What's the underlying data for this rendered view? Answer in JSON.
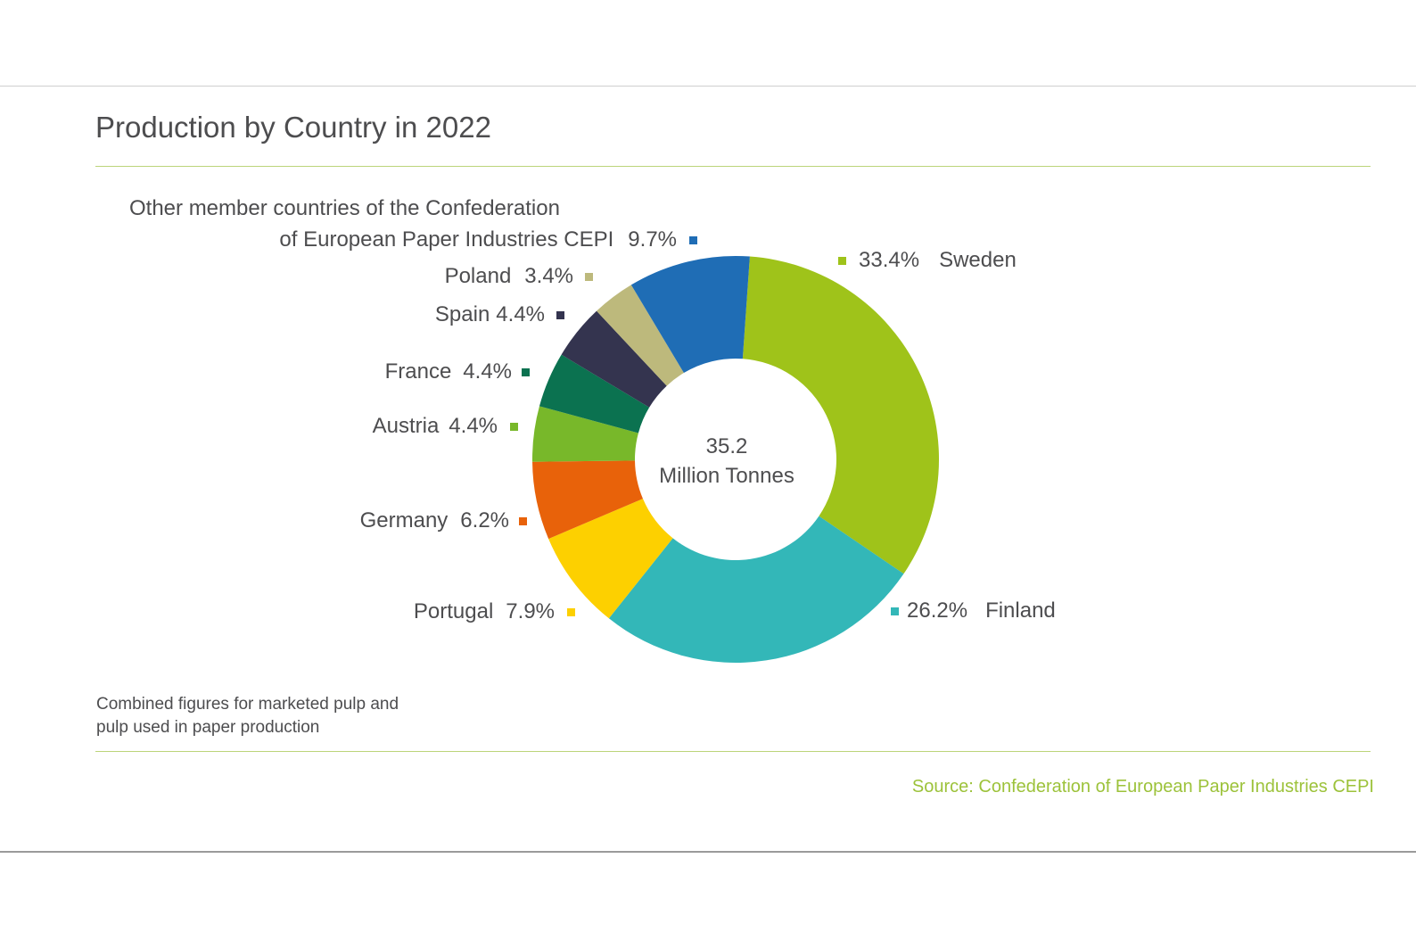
{
  "chart_data": {
    "type": "pie",
    "subtype": "donut",
    "title": "Production by Country in 2022",
    "total_value": "35.2",
    "total_unit": "Million Tonnes",
    "unit": "%",
    "slices": [
      {
        "name": "Sweden",
        "value": 33.4,
        "label": "33.4%",
        "color": "#9fc31a"
      },
      {
        "name": "Finland",
        "value": 26.2,
        "label": "26.2%",
        "color": "#33b7b8"
      },
      {
        "name": "Portugal",
        "value": 7.9,
        "label": "7.9%",
        "color": "#fdd000"
      },
      {
        "name": "Germany",
        "value": 6.2,
        "label": "6.2%",
        "color": "#e8620a"
      },
      {
        "name": "Austria",
        "value": 4.4,
        "label": "4.4%",
        "color": "#78b82a"
      },
      {
        "name": "France",
        "value": 4.4,
        "label": "4.4%",
        "color": "#0b7250"
      },
      {
        "name": "Spain",
        "value": 4.4,
        "label": "4.4%",
        "color": "#34344f"
      },
      {
        "name": "Poland",
        "value": 3.4,
        "label": "3.4%",
        "color": "#bdb97c"
      },
      {
        "name": "Other member countries of the Confederation of European Paper Industries CEPI",
        "name_line1": "Other member countries of the Confederation",
        "name_line2": "of European Paper Industries CEPI",
        "value": 9.7,
        "label": "9.7%",
        "color": "#1f6db5"
      }
    ],
    "legend": "labels-around"
  },
  "note": {
    "line1": "Combined figures for marketed pulp and",
    "line2": "pulp used in paper production"
  },
  "source": "Source: Confederation of European Paper Industries CEPI"
}
